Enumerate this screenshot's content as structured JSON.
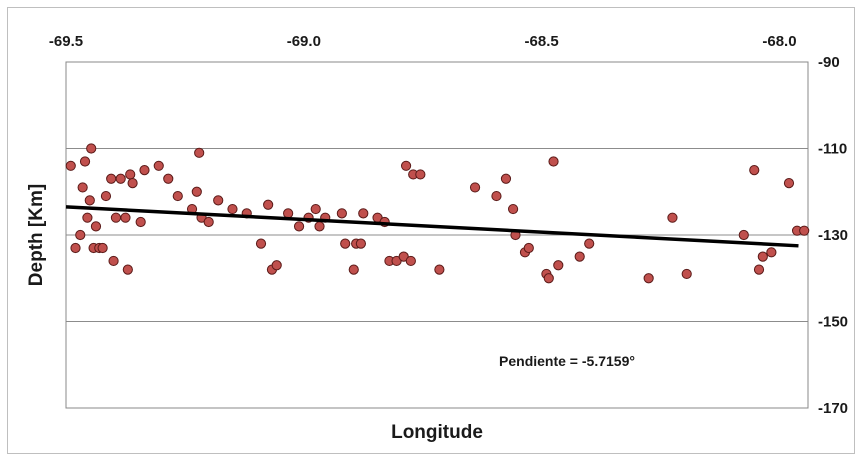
{
  "chart_data": {
    "type": "scatter",
    "title": "",
    "xlabel": "Longitude",
    "ylabel": "Depth [Km]",
    "xlim": [
      -69.5,
      -67.94
    ],
    "ylim": [
      -170,
      -90
    ],
    "x_ticks": [
      "-69.5",
      "-69.0",
      "-68.5",
      "-68.0"
    ],
    "x_tick_values": [
      -69.5,
      -69.0,
      -68.5,
      -68.0
    ],
    "y_ticks": [
      "-90",
      "-110",
      "-130",
      "-150",
      "-170"
    ],
    "y_tick_values": [
      -90,
      -110,
      -130,
      -150,
      -170
    ],
    "x_axis_position": "top",
    "y_axis_position": "right",
    "grid": "horizontal",
    "marker_color": "#c0504d",
    "marker_edge": "#5a1a18",
    "line_color": "#000000",
    "annotation": "Pendiente = -5.7159°",
    "points": [
      {
        "x": -69.49,
        "y": -114
      },
      {
        "x": -69.48,
        "y": -133
      },
      {
        "x": -69.47,
        "y": -130
      },
      {
        "x": -69.465,
        "y": -119
      },
      {
        "x": -69.46,
        "y": -113
      },
      {
        "x": -69.455,
        "y": -126
      },
      {
        "x": -69.45,
        "y": -122
      },
      {
        "x": -69.447,
        "y": -110
      },
      {
        "x": -69.442,
        "y": -133
      },
      {
        "x": -69.437,
        "y": -128
      },
      {
        "x": -69.43,
        "y": -133
      },
      {
        "x": -69.423,
        "y": -133
      },
      {
        "x": -69.416,
        "y": -121
      },
      {
        "x": -69.405,
        "y": -117
      },
      {
        "x": -69.4,
        "y": -136
      },
      {
        "x": -69.395,
        "y": -126
      },
      {
        "x": -69.385,
        "y": -117
      },
      {
        "x": -69.375,
        "y": -126
      },
      {
        "x": -69.37,
        "y": -138
      },
      {
        "x": -69.365,
        "y": -116
      },
      {
        "x": -69.36,
        "y": -118
      },
      {
        "x": -69.343,
        "y": -127
      },
      {
        "x": -69.335,
        "y": -115
      },
      {
        "x": -69.305,
        "y": -114
      },
      {
        "x": -69.285,
        "y": -117
      },
      {
        "x": -69.265,
        "y": -121
      },
      {
        "x": -69.235,
        "y": -124
      },
      {
        "x": -69.225,
        "y": -120
      },
      {
        "x": -69.22,
        "y": -111
      },
      {
        "x": -69.215,
        "y": -126
      },
      {
        "x": -69.2,
        "y": -127
      },
      {
        "x": -69.18,
        "y": -122
      },
      {
        "x": -69.15,
        "y": -124
      },
      {
        "x": -69.12,
        "y": -125
      },
      {
        "x": -69.09,
        "y": -132
      },
      {
        "x": -69.075,
        "y": -123
      },
      {
        "x": -69.067,
        "y": -138
      },
      {
        "x": -69.057,
        "y": -137
      },
      {
        "x": -69.033,
        "y": -125
      },
      {
        "x": -69.01,
        "y": -128
      },
      {
        "x": -68.99,
        "y": -126
      },
      {
        "x": -68.975,
        "y": -124
      },
      {
        "x": -68.967,
        "y": -128
      },
      {
        "x": -68.955,
        "y": -126
      },
      {
        "x": -68.92,
        "y": -125
      },
      {
        "x": -68.913,
        "y": -132
      },
      {
        "x": -68.895,
        "y": -138
      },
      {
        "x": -68.89,
        "y": -132
      },
      {
        "x": -68.88,
        "y": -132
      },
      {
        "x": -68.875,
        "y": -125
      },
      {
        "x": -68.845,
        "y": -126
      },
      {
        "x": -68.83,
        "y": -127
      },
      {
        "x": -68.82,
        "y": -136
      },
      {
        "x": -68.805,
        "y": -136
      },
      {
        "x": -68.79,
        "y": -135
      },
      {
        "x": -68.785,
        "y": -114
      },
      {
        "x": -68.775,
        "y": -136
      },
      {
        "x": -68.77,
        "y": -116
      },
      {
        "x": -68.755,
        "y": -116
      },
      {
        "x": -68.715,
        "y": -138
      },
      {
        "x": -68.64,
        "y": -119
      },
      {
        "x": -68.595,
        "y": -121
      },
      {
        "x": -68.575,
        "y": -117
      },
      {
        "x": -68.56,
        "y": -124
      },
      {
        "x": -68.555,
        "y": -130
      },
      {
        "x": -68.535,
        "y": -134
      },
      {
        "x": -68.527,
        "y": -133
      },
      {
        "x": -68.49,
        "y": -139
      },
      {
        "x": -68.485,
        "y": -140
      },
      {
        "x": -68.475,
        "y": -113
      },
      {
        "x": -68.465,
        "y": -137
      },
      {
        "x": -68.42,
        "y": -135
      },
      {
        "x": -68.4,
        "y": -132
      },
      {
        "x": -68.275,
        "y": -140
      },
      {
        "x": -68.225,
        "y": -126
      },
      {
        "x": -68.195,
        "y": -139
      },
      {
        "x": -68.075,
        "y": -130
      },
      {
        "x": -68.053,
        "y": -115
      },
      {
        "x": -68.043,
        "y": -138
      },
      {
        "x": -68.035,
        "y": -135
      },
      {
        "x": -68.017,
        "y": -134
      },
      {
        "x": -67.98,
        "y": -118
      },
      {
        "x": -67.963,
        "y": -129
      },
      {
        "x": -67.948,
        "y": -129
      }
    ],
    "trendline": {
      "x": [
        -69.5,
        -67.96
      ],
      "y": [
        -123.5,
        -132.5
      ]
    }
  }
}
